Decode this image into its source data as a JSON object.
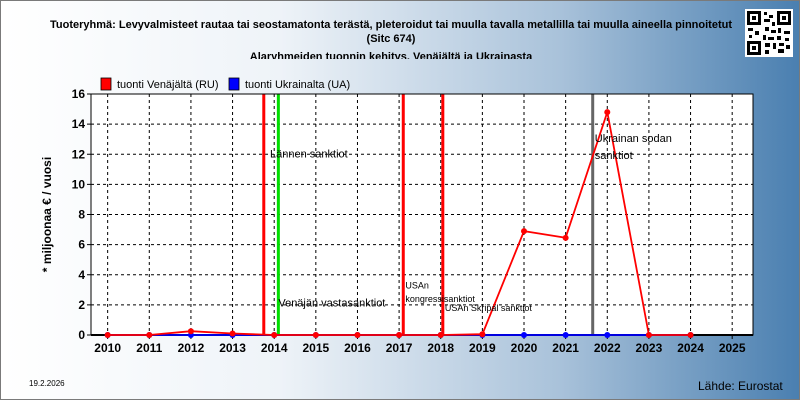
{
  "title": {
    "line1": "Tuoteryhmä: Levyvalmisteet rautaa tai seostamatonta terästä, pleteroidut tai muulla tavalla metallilla tai muulla aineella pinnoitetut",
    "line2": "(Sitc 674)",
    "line3": "Alaryhmeiden tuonnin kehitys, Venäjältä ja Ukrainasta"
  },
  "date": "19.2.2026",
  "source": "Lähde: Eurostat",
  "chart_data": {
    "type": "line",
    "ylabel": "* miljoonaa € / vuosi",
    "xlabel": "",
    "ylim": [
      0,
      16
    ],
    "yticks": [
      0,
      2,
      4,
      6,
      8,
      10,
      12,
      14,
      16
    ],
    "xlim": [
      2009.6,
      2025.5
    ],
    "xticks": [
      2010,
      2011,
      2012,
      2013,
      2014,
      2015,
      2016,
      2017,
      2018,
      2019,
      2020,
      2021,
      2022,
      2023,
      2024,
      2025
    ],
    "grid": true,
    "legend": "top-left",
    "series": [
      {
        "name": "tuonti Venäjältä (RU)",
        "color": "#ff0000",
        "points": [
          [
            2010,
            0
          ],
          [
            2011,
            0
          ],
          [
            2012,
            0.25
          ],
          [
            2013,
            0.1
          ],
          [
            2014,
            0
          ],
          [
            2015,
            0
          ],
          [
            2016,
            0
          ],
          [
            2017,
            0
          ],
          [
            2018,
            0
          ],
          [
            2019,
            0.05
          ],
          [
            2020,
            6.9
          ],
          [
            2021,
            6.45
          ],
          [
            2022,
            14.8
          ],
          [
            2023,
            0
          ],
          [
            2024,
            0
          ]
        ]
      },
      {
        "name": "tuonti Ukrainalta (UA)",
        "color": "#0000ff",
        "points": [
          [
            2010,
            0
          ],
          [
            2011,
            0
          ],
          [
            2012,
            0
          ],
          [
            2013,
            0
          ],
          [
            2014,
            0
          ],
          [
            2015,
            0
          ],
          [
            2016,
            0
          ],
          [
            2017,
            0
          ],
          [
            2018,
            0
          ],
          [
            2019,
            0
          ],
          [
            2020,
            0
          ],
          [
            2021,
            0
          ],
          [
            2022,
            0
          ],
          [
            2023,
            0
          ],
          [
            2024,
            0
          ]
        ]
      }
    ],
    "events": [
      {
        "x": 2013.75,
        "color": "#ff0000",
        "label": ""
      },
      {
        "x": 2014.1,
        "color": "#00dd00",
        "label": ""
      },
      {
        "x": 2017.1,
        "color": "#ff0000",
        "label": ""
      },
      {
        "x": 2018.05,
        "color": "#ff0000",
        "label": ""
      },
      {
        "x": 2021.65,
        "color": "#666666",
        "label": ""
      }
    ],
    "annotations": [
      {
        "text": "Lännen sanktiot",
        "x": 2013.9,
        "y": 11.8
      },
      {
        "text": "Venäjän vastasanktiot",
        "x": 2014.1,
        "y": 1.9
      },
      {
        "text": "USAn",
        "x": 2017.15,
        "y": 3.1
      },
      {
        "text": "kongressisanktiot",
        "x": 2017.15,
        "y": 2.2
      },
      {
        "text": "USAn Skripal sanktiot",
        "x": 2018.1,
        "y": 1.6
      },
      {
        "text": "Ukrainan sodan",
        "x": 2021.7,
        "y": 12.8
      },
      {
        "text": "sanktiot",
        "x": 2021.7,
        "y": 11.7
      }
    ]
  }
}
